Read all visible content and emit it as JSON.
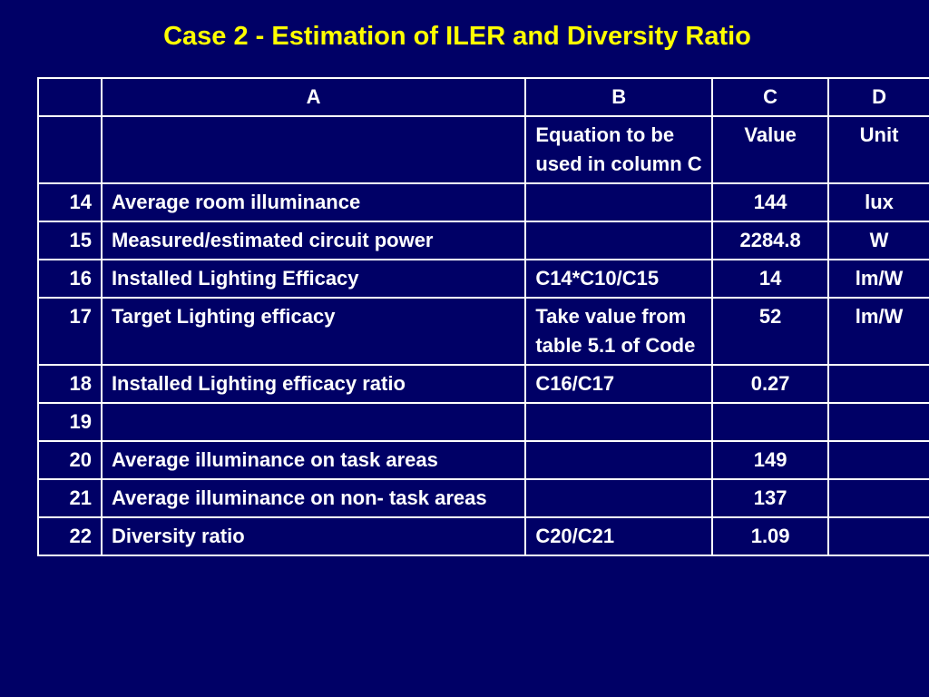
{
  "title": "Case 2 - Estimation of ILER and Diversity Ratio",
  "table": {
    "column_letters": [
      "",
      "A",
      "B",
      "C",
      "D"
    ],
    "column_descriptions": [
      "",
      "",
      "Equation to be used in column C",
      "Value",
      "Unit"
    ],
    "rows": [
      {
        "num": "14",
        "label": "Average room illuminance",
        "equation": "",
        "value": "144",
        "unit": "lux"
      },
      {
        "num": "15",
        "label": "Measured/estimated circuit power",
        "equation": "",
        "value": "2284.8",
        "unit": "W"
      },
      {
        "num": "16",
        "label": "Installed Lighting Efficacy",
        "equation": "C14*C10/C15",
        "value": "14",
        "unit": "lm/W"
      },
      {
        "num": "17",
        "label": "Target Lighting efficacy",
        "equation": "Take value from table 5.1 of Code",
        "value": "52",
        "unit": "lm/W"
      },
      {
        "num": "18",
        "label": "Installed Lighting efficacy ratio",
        "equation": "C16/C17",
        "value": "0.27",
        "unit": ""
      },
      {
        "num": "19",
        "label": "",
        "equation": "",
        "value": "",
        "unit": ""
      },
      {
        "num": "20",
        "label": "Average illuminance on task areas",
        "equation": "",
        "value": "149",
        "unit": ""
      },
      {
        "num": "21",
        "label": "Average illuminance on non- task areas",
        "equation": "",
        "value": "137",
        "unit": ""
      },
      {
        "num": "22",
        "label": "Diversity ratio",
        "equation": "C20/C21",
        "value": "1.09",
        "unit": ""
      }
    ]
  }
}
